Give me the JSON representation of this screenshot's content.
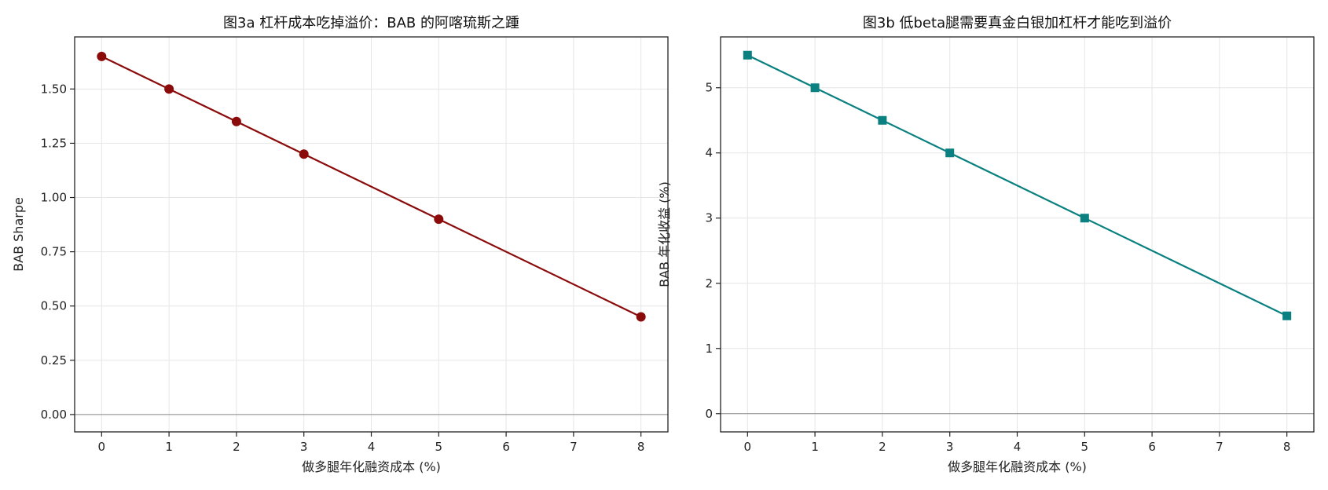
{
  "chart_data": [
    {
      "type": "line",
      "title": "图3a  杠杆成本吃掉溢价：BAB 的阿喀琉斯之踵",
      "xlabel": "做多腿年化融资成本 (%)",
      "ylabel": "BAB Sharpe",
      "x": [
        0,
        1,
        2,
        3,
        5,
        8
      ],
      "series": [
        {
          "values": [
            1.65,
            1.5,
            1.35,
            1.2,
            0.9,
            0.45
          ],
          "color": "#8b0a0a",
          "marker": "circle"
        }
      ],
      "xlim": [
        -0.4,
        8.4
      ],
      "ylim": [
        -0.08,
        1.74
      ],
      "xticks": [
        0,
        1,
        2,
        3,
        4,
        5,
        6,
        7,
        8
      ],
      "xtick_labels": [
        "0",
        "1",
        "2",
        "3",
        "4",
        "5",
        "6",
        "7",
        "8"
      ],
      "yticks": [
        0,
        0.25,
        0.5,
        0.75,
        1.0,
        1.25,
        1.5
      ],
      "ytick_labels": [
        "0.00",
        "0.25",
        "0.50",
        "0.75",
        "1.00",
        "1.25",
        "1.50"
      ],
      "grid": true,
      "zero_line": true
    },
    {
      "type": "line",
      "title": "图3b  低beta腿需要真金白银加杠杆才能吃到溢价",
      "xlabel": "做多腿年化融资成本 (%)",
      "ylabel": "BAB 年化收益 (%)",
      "x": [
        0,
        1,
        2,
        3,
        5,
        8
      ],
      "series": [
        {
          "values": [
            5.5,
            5.0,
            4.5,
            4.0,
            3.0,
            1.5
          ],
          "color": "#0b8080",
          "marker": "square"
        }
      ],
      "xlim": [
        -0.4,
        8.4
      ],
      "ylim": [
        -0.28,
        5.78
      ],
      "xticks": [
        0,
        1,
        2,
        3,
        4,
        5,
        6,
        7,
        8
      ],
      "xtick_labels": [
        "0",
        "1",
        "2",
        "3",
        "4",
        "5",
        "6",
        "7",
        "8"
      ],
      "yticks": [
        0,
        1,
        2,
        3,
        4,
        5
      ],
      "ytick_labels": [
        "0",
        "1",
        "2",
        "3",
        "4",
        "5"
      ],
      "grid": true,
      "zero_line": true
    }
  ]
}
